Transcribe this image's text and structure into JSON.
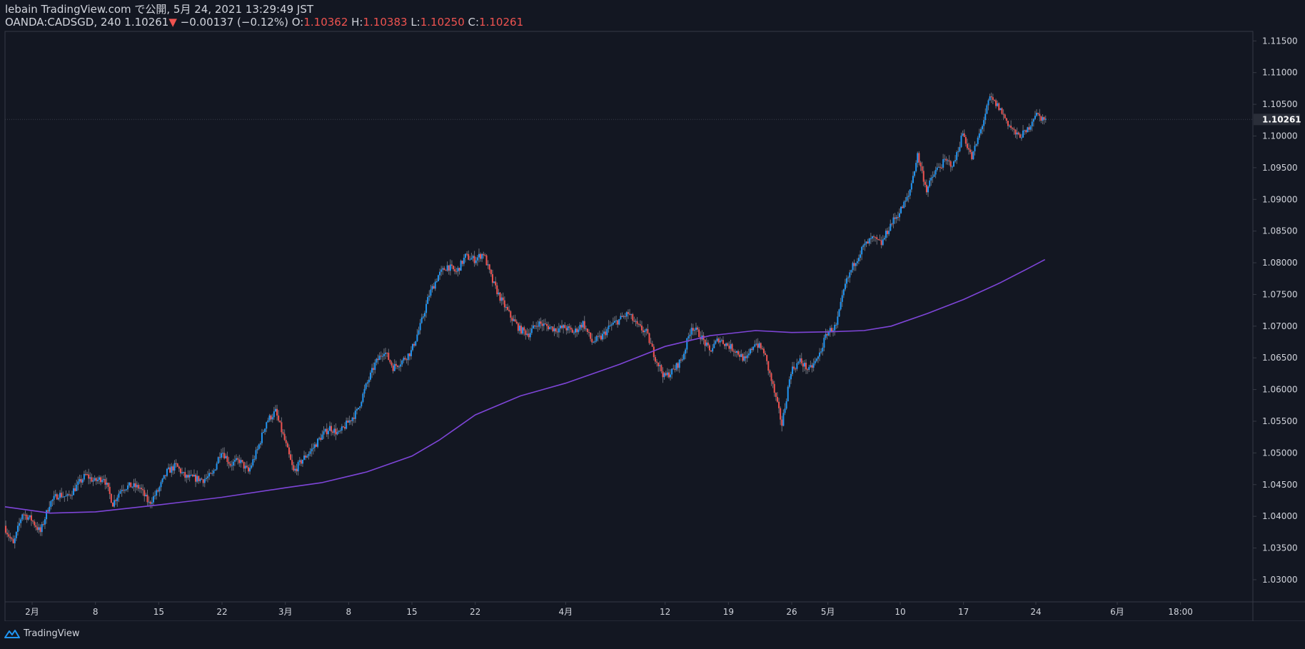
{
  "header": {
    "publish_line": "lebain TradingView.com で公開, 5月 24, 2021 13:29:49 JST",
    "symbol": "OANDA:CADSGD, 240",
    "last": "1.10261",
    "down_arrow": "▼",
    "change": "−0.00137 (−0.12%)",
    "o_label": "O:",
    "o_value": "1.10362",
    "h_label": "H:",
    "h_value": "1.10383",
    "l_label": "L:",
    "l_value": "1.10250",
    "c_label": "C:",
    "c_value": "1.10261"
  },
  "footer": {
    "brand": "TradingView",
    "logo_icon": "tradingview-logo-icon"
  },
  "colors": {
    "background": "#131722",
    "up": "#2196f3",
    "down": "#ef5350",
    "ma": "#7e45d8",
    "axis_text": "#d1d4dc",
    "border": "#363a45"
  },
  "chart_data": {
    "type": "candlestick",
    "y_range": [
      1.0265,
      1.1165
    ],
    "y_ticks": [
      "1.03000",
      "1.03500",
      "1.04000",
      "1.04500",
      "1.05000",
      "1.05500",
      "1.06000",
      "1.06500",
      "1.07000",
      "1.07500",
      "1.08000",
      "1.08500",
      "1.09000",
      "1.09500",
      "1.10000",
      "1.10500",
      "1.11000",
      "1.11500"
    ],
    "y_tick_values": [
      1.03,
      1.035,
      1.04,
      1.045,
      1.05,
      1.055,
      1.06,
      1.065,
      1.07,
      1.075,
      1.08,
      1.085,
      1.09,
      1.095,
      1.1,
      1.105,
      1.11,
      1.115
    ],
    "last_price_label": "1.10261",
    "last_price": 1.10261,
    "x_domain": [
      "2021-01-29",
      "2021-06-16"
    ],
    "x_ticks": [
      {
        "label": "2月",
        "date": "2021-02-01"
      },
      {
        "label": "8",
        "date": "2021-02-08"
      },
      {
        "label": "15",
        "date": "2021-02-15"
      },
      {
        "label": "22",
        "date": "2021-02-22"
      },
      {
        "label": "3月",
        "date": "2021-03-01"
      },
      {
        "label": "8",
        "date": "2021-03-08"
      },
      {
        "label": "15",
        "date": "2021-03-15"
      },
      {
        "label": "22",
        "date": "2021-03-22"
      },
      {
        "label": "4月",
        "date": "2021-04-01"
      },
      {
        "label": "12",
        "date": "2021-04-12"
      },
      {
        "label": "19",
        "date": "2021-04-19"
      },
      {
        "label": "26",
        "date": "2021-04-26"
      },
      {
        "label": "5月",
        "date": "2021-04-30"
      },
      {
        "label": "10",
        "date": "2021-05-08"
      },
      {
        "label": "17",
        "date": "2021-05-15"
      },
      {
        "label": "24",
        "date": "2021-05-23"
      },
      {
        "label": "6月",
        "date": "2021-06-01"
      },
      {
        "label": "18:00",
        "date": "2021-06-08"
      }
    ],
    "candle_interval": "240",
    "price_path": [
      [
        "2021-01-29",
        1.0385
      ],
      [
        "2021-01-30",
        1.0355
      ],
      [
        "2021-01-31",
        1.0405
      ],
      [
        "2021-02-01",
        1.0395
      ],
      [
        "2021-02-02",
        1.0375
      ],
      [
        "2021-02-03",
        1.042
      ],
      [
        "2021-02-04",
        1.0435
      ],
      [
        "2021-02-05",
        1.043
      ],
      [
        "2021-02-07",
        1.0465
      ],
      [
        "2021-02-08",
        1.0455
      ],
      [
        "2021-02-09",
        1.0462
      ],
      [
        "2021-02-10",
        1.042
      ],
      [
        "2021-02-11",
        1.0445
      ],
      [
        "2021-02-12",
        1.0448
      ],
      [
        "2021-02-13",
        1.0445
      ],
      [
        "2021-02-14",
        1.042
      ],
      [
        "2021-02-15",
        1.044
      ],
      [
        "2021-02-16",
        1.047
      ],
      [
        "2021-02-17",
        1.048
      ],
      [
        "2021-02-18",
        1.0462
      ],
      [
        "2021-02-19",
        1.046
      ],
      [
        "2021-02-20",
        1.0458
      ],
      [
        "2021-02-21",
        1.0465
      ],
      [
        "2021-02-22",
        1.0505
      ],
      [
        "2021-02-23",
        1.0482
      ],
      [
        "2021-02-24",
        1.0488
      ],
      [
        "2021-02-25",
        1.047
      ],
      [
        "2021-02-26",
        1.0505
      ],
      [
        "2021-02-27",
        1.055
      ],
      [
        "2021-02-28",
        1.0565
      ],
      [
        "2021-03-01",
        1.052
      ],
      [
        "2021-03-02",
        1.047
      ],
      [
        "2021-03-03",
        1.049
      ],
      [
        "2021-03-04",
        1.0505
      ],
      [
        "2021-03-05",
        1.0525
      ],
      [
        "2021-03-06",
        1.054
      ],
      [
        "2021-03-07",
        1.053
      ],
      [
        "2021-03-08",
        1.0548
      ],
      [
        "2021-03-09",
        1.0565
      ],
      [
        "2021-03-10",
        1.0605
      ],
      [
        "2021-03-11",
        1.064
      ],
      [
        "2021-03-12",
        1.0662
      ],
      [
        "2021-03-13",
        1.0635
      ],
      [
        "2021-03-14",
        1.0645
      ],
      [
        "2021-03-15",
        1.066
      ],
      [
        "2021-03-16",
        1.07
      ],
      [
        "2021-03-17",
        1.075
      ],
      [
        "2021-03-18",
        1.078
      ],
      [
        "2021-03-19",
        1.0795
      ],
      [
        "2021-03-20",
        1.0785
      ],
      [
        "2021-03-21",
        1.081
      ],
      [
        "2021-03-22",
        1.0805
      ],
      [
        "2021-03-23",
        1.0815
      ],
      [
        "2021-03-24",
        1.077
      ],
      [
        "2021-03-25",
        1.074
      ],
      [
        "2021-03-26",
        1.0715
      ],
      [
        "2021-03-27",
        1.0695
      ],
      [
        "2021-03-28",
        1.0688
      ],
      [
        "2021-03-29",
        1.0705
      ],
      [
        "2021-03-30",
        1.07
      ],
      [
        "2021-03-31",
        1.0695
      ],
      [
        "2021-04-01",
        1.0698
      ],
      [
        "2021-04-02",
        1.069
      ],
      [
        "2021-04-03",
        1.0705
      ],
      [
        "2021-04-04",
        1.0675
      ],
      [
        "2021-04-05",
        1.0682
      ],
      [
        "2021-04-06",
        1.07
      ],
      [
        "2021-04-07",
        1.071
      ],
      [
        "2021-04-08",
        1.072
      ],
      [
        "2021-04-09",
        1.07
      ],
      [
        "2021-04-10",
        1.069
      ],
      [
        "2021-04-11",
        1.065
      ],
      [
        "2021-04-12",
        1.062
      ],
      [
        "2021-04-13",
        1.063
      ],
      [
        "2021-04-14",
        1.065
      ],
      [
        "2021-04-15",
        1.07
      ],
      [
        "2021-04-16",
        1.0685
      ],
      [
        "2021-04-17",
        1.066
      ],
      [
        "2021-04-18",
        1.068
      ],
      [
        "2021-04-19",
        1.067
      ],
      [
        "2021-04-20",
        1.066
      ],
      [
        "2021-04-21",
        1.0645
      ],
      [
        "2021-04-22",
        1.0675
      ],
      [
        "2021-04-23",
        1.066
      ],
      [
        "2021-04-24",
        1.0605
      ],
      [
        "2021-04-25",
        1.0545
      ],
      [
        "2021-04-26",
        1.063
      ],
      [
        "2021-04-27",
        1.0645
      ],
      [
        "2021-04-28",
        1.063
      ],
      [
        "2021-04-29",
        1.065
      ],
      [
        "2021-04-30",
        1.069
      ],
      [
        "2021-05-01",
        1.07
      ],
      [
        "2021-05-02",
        1.0765
      ],
      [
        "2021-05-03",
        1.08
      ],
      [
        "2021-05-04",
        1.0825
      ],
      [
        "2021-05-05",
        1.0838
      ],
      [
        "2021-05-06",
        1.083
      ],
      [
        "2021-05-07",
        1.086
      ],
      [
        "2021-05-08",
        1.088
      ],
      [
        "2021-05-09",
        1.0905
      ],
      [
        "2021-05-10",
        1.097
      ],
      [
        "2021-05-11",
        1.0915
      ],
      [
        "2021-05-12",
        1.0945
      ],
      [
        "2021-05-13",
        1.096
      ],
      [
        "2021-05-14",
        1.0955
      ],
      [
        "2021-05-15",
        1.1005
      ],
      [
        "2021-05-16",
        1.0965
      ],
      [
        "2021-05-17",
        1.101
      ],
      [
        "2021-05-18",
        1.106
      ],
      [
        "2021-05-19",
        1.1045
      ],
      [
        "2021-05-20",
        1.102
      ],
      [
        "2021-05-21",
        1.1
      ],
      [
        "2021-05-22",
        1.1005
      ],
      [
        "2021-05-23",
        1.1035
      ],
      [
        "2021-05-24",
        1.10261
      ]
    ],
    "moving_average": [
      [
        "2021-01-29",
        1.0415
      ],
      [
        "2021-02-03",
        1.0405
      ],
      [
        "2021-02-08",
        1.0407
      ],
      [
        "2021-02-15",
        1.0418
      ],
      [
        "2021-02-22",
        1.043
      ],
      [
        "2021-03-01",
        1.0445
      ],
      [
        "2021-03-05",
        1.0453
      ],
      [
        "2021-03-10",
        1.047
      ],
      [
        "2021-03-15",
        1.0495
      ],
      [
        "2021-03-18",
        1.052
      ],
      [
        "2021-03-22",
        1.056
      ],
      [
        "2021-03-27",
        1.059
      ],
      [
        "2021-04-01",
        1.061
      ],
      [
        "2021-04-07",
        1.064
      ],
      [
        "2021-04-12",
        1.0668
      ],
      [
        "2021-04-17",
        1.0685
      ],
      [
        "2021-04-22",
        1.0693
      ],
      [
        "2021-04-26",
        1.069
      ],
      [
        "2021-04-30",
        1.0691
      ],
      [
        "2021-05-04",
        1.0693
      ],
      [
        "2021-05-07",
        1.07
      ],
      [
        "2021-05-11",
        1.072
      ],
      [
        "2021-05-15",
        1.0742
      ],
      [
        "2021-05-19",
        1.0768
      ],
      [
        "2021-05-22",
        1.079
      ],
      [
        "2021-05-24",
        1.0805
      ]
    ]
  }
}
